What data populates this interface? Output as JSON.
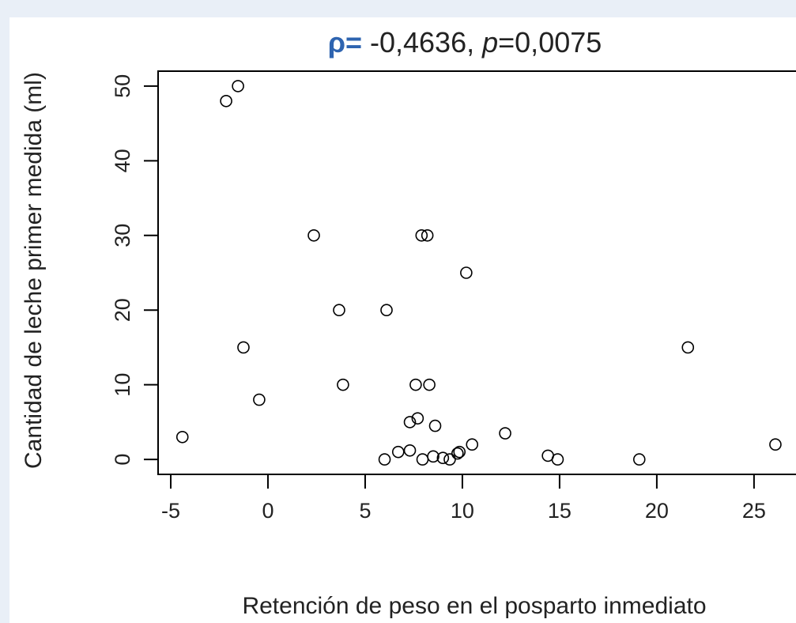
{
  "chart_data": {
    "type": "scatter",
    "title": [
      "ρ=",
      " -0,4636, ",
      "p",
      "=0,0075"
    ],
    "x_label": "Retención de peso en el posparto inmediato",
    "y_label": "Cantidad de leche primer medida (ml)",
    "x": [
      -4.4,
      -2.15,
      -1.54,
      -1.26,
      -0.45,
      2.36,
      3.66,
      3.86,
      6.0,
      6.1,
      6.7,
      7.3,
      7.3,
      7.7,
      7.6,
      7.9,
      8.2,
      8.3,
      7.95,
      8.5,
      8.6,
      9.0,
      9.35,
      9.75,
      9.85,
      10.2,
      10.5,
      12.2,
      14.4,
      14.9,
      19.1,
      21.6,
      26.1
    ],
    "values": [
      3,
      48,
      50,
      15,
      8,
      30,
      20,
      10,
      0,
      20,
      1,
      1.2,
      5,
      5.5,
      10,
      30,
      30,
      10,
      0,
      0.4,
      4.5,
      0.2,
      0,
      0.8,
      1,
      25,
      2,
      3.5,
      0.5,
      0,
      0,
      15,
      2
    ],
    "color": "#000000",
    "xlim": [
      -5.65,
      27.2
    ],
    "xticks": [
      -5,
      0,
      5,
      10,
      15,
      20,
      25
    ],
    "ylim": [
      -2,
      52
    ],
    "yticks": [
      0,
      10,
      20,
      30,
      40,
      50
    ],
    "grid": false
  }
}
